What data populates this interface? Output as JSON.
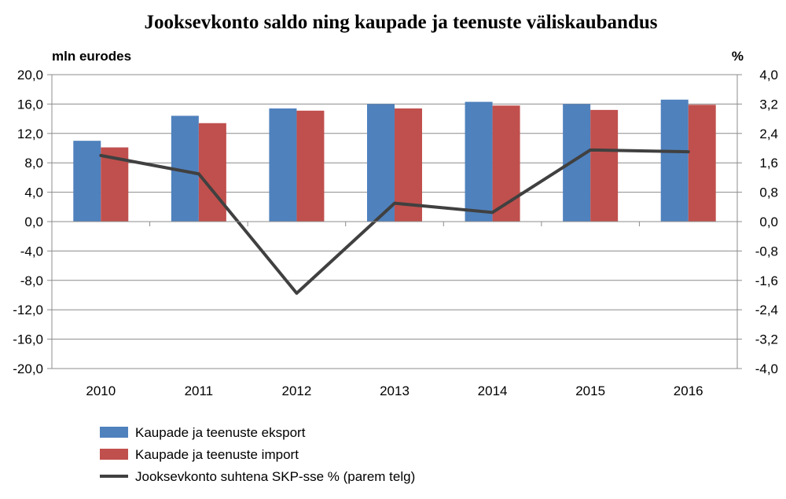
{
  "chart_data": {
    "type": "bar",
    "title": "Jooksevkonto saldo ning kaupade ja teenuste väliskaubandus",
    "ylabel_left": "mln eurodes",
    "ylabel_right": "%",
    "categories": [
      "2010",
      "2011",
      "2012",
      "2013",
      "2014",
      "2015",
      "2016"
    ],
    "ylim_left": [
      -20,
      20
    ],
    "yticks_left": [
      "20,0",
      "16,0",
      "12,0",
      "8,0",
      "4,0",
      "0,0",
      "-4,0",
      "-8,0",
      "-12,0",
      "-16,0",
      "-20,0"
    ],
    "ylim_right": [
      -4,
      4
    ],
    "yticks_right": [
      "4,0",
      "3,2",
      "2,4",
      "1,6",
      "0,8",
      "0,0",
      "-0,8",
      "-1,6",
      "-2,4",
      "-3,2",
      "-4,0"
    ],
    "grid": true,
    "legend_position": "bottom",
    "series": [
      {
        "name": "Kaupade ja teenuste eksport",
        "type": "bar",
        "axis": "left",
        "color": "#4F81BD",
        "values": [
          11.0,
          14.4,
          15.4,
          16.0,
          16.3,
          16.0,
          16.6
        ]
      },
      {
        "name": "Kaupade ja teenuste import",
        "type": "bar",
        "axis": "left",
        "color": "#C0504D",
        "values": [
          10.1,
          13.4,
          15.1,
          15.4,
          15.8,
          15.2,
          15.9
        ]
      },
      {
        "name": "Jooksevkonto suhtena SKP-sse % (parem telg)",
        "type": "line",
        "axis": "right",
        "color": "#404040",
        "values": [
          1.8,
          1.3,
          -1.95,
          0.5,
          0.25,
          1.95,
          1.9
        ]
      }
    ]
  }
}
